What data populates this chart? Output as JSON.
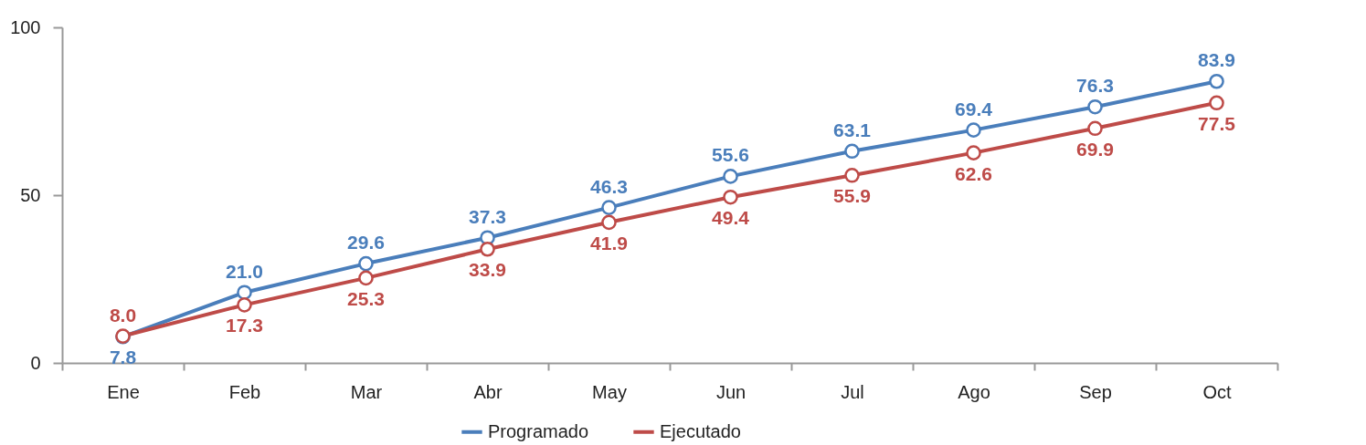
{
  "chart_data": {
    "type": "line",
    "categories": [
      "Ene",
      "Feb",
      "Mar",
      "Abr",
      "May",
      "Jun",
      "Jul",
      "Ago",
      "Sep",
      "Oct"
    ],
    "series": [
      {
        "name": "Programado",
        "color": "#4a7ebb",
        "values": [
          7.8,
          21.0,
          29.6,
          37.3,
          46.3,
          55.6,
          63.1,
          69.4,
          76.3,
          83.9
        ],
        "value_labels": [
          "7.8",
          "21.0",
          "29.6",
          "37.3",
          "46.3",
          "55.6",
          "63.1",
          "69.4",
          "76.3",
          "83.9"
        ]
      },
      {
        "name": "Ejecutado",
        "color": "#be4b48",
        "values": [
          8.0,
          17.3,
          25.3,
          33.9,
          41.9,
          49.4,
          55.9,
          62.6,
          69.9,
          77.5
        ],
        "value_labels": [
          "8.0",
          "17.3",
          "25.3",
          "33.9",
          "41.9",
          "49.4",
          "55.9",
          "62.6",
          "69.9",
          "77.5"
        ]
      }
    ],
    "ylim": [
      0,
      100
    ],
    "yticks": [
      0,
      50,
      100
    ],
    "grid": false,
    "legend": "bottom",
    "marker": "circle",
    "line_style": "solid"
  }
}
